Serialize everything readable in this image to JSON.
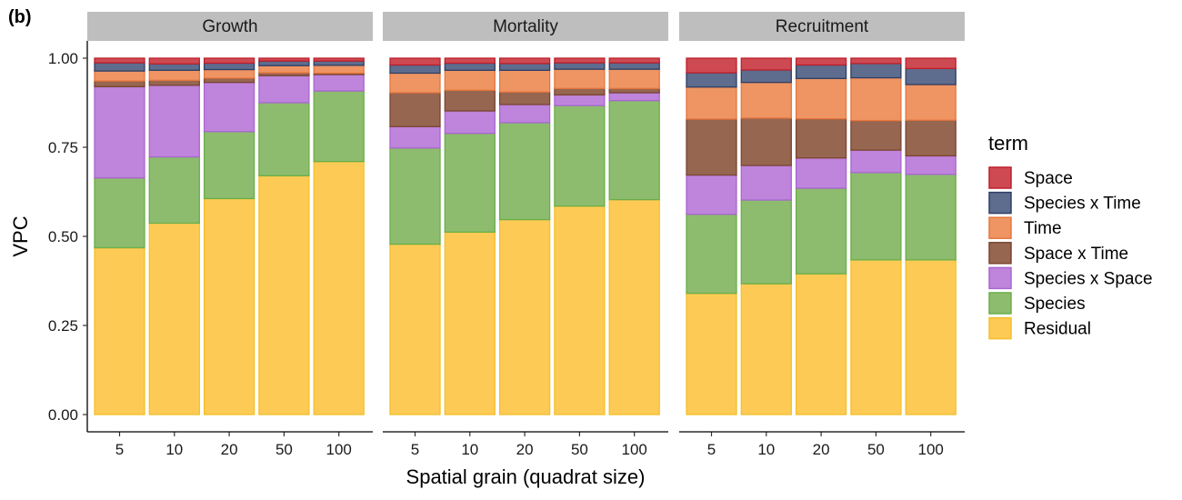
{
  "chart_data": {
    "type": "bar",
    "stacked": true,
    "tag": "(b)",
    "ylabel": "VPC",
    "xlabel": "Spatial grain (quadrat size)",
    "ylim": [
      0,
      1
    ],
    "yticks": [
      "0.00",
      "0.25",
      "0.50",
      "0.75",
      "1.00"
    ],
    "categories": [
      "5",
      "10",
      "20",
      "50",
      "100"
    ],
    "legend": {
      "title": "term",
      "placement": "right",
      "terms": [
        "Space",
        "Species x Time",
        "Time",
        "Space x Time",
        "Species x Space",
        "Species",
        "Residual"
      ]
    },
    "colors": {
      "Residual": {
        "fill": "#FDCB55",
        "stroke": "#F5BF2A"
      },
      "Species": {
        "fill": "#8DBC6F",
        "stroke": "#6AAE48"
      },
      "Species x Space": {
        "fill": "#BF84DC",
        "stroke": "#A967D0"
      },
      "Space x Time": {
        "fill": "#976650",
        "stroke": "#7A4530"
      },
      "Time": {
        "fill": "#EE9563",
        "stroke": "#E8763E"
      },
      "Species x Time": {
        "fill": "#5E6C8D",
        "stroke": "#2E3F66"
      },
      "Space": {
        "fill": "#CE4A52",
        "stroke": "#BF1F2C"
      }
    },
    "panels": [
      {
        "title": "Growth",
        "series": [
          {
            "name": "Residual",
            "values": [
              0.468,
              0.537,
              0.606,
              0.67,
              0.71
            ]
          },
          {
            "name": "Species",
            "values": [
              0.196,
              0.186,
              0.188,
              0.205,
              0.198
            ]
          },
          {
            "name": "Species x Space",
            "values": [
              0.256,
              0.201,
              0.138,
              0.076,
              0.046
            ]
          },
          {
            "name": "Space x Time",
            "values": [
              0.016,
              0.014,
              0.012,
              0.008,
              0.004
            ]
          },
          {
            "name": "Time",
            "values": [
              0.028,
              0.028,
              0.024,
              0.02,
              0.022
            ]
          },
          {
            "name": "Species x Time",
            "values": [
              0.023,
              0.018,
              0.018,
              0.013,
              0.012
            ]
          },
          {
            "name": "Space",
            "values": [
              0.013,
              0.016,
              0.014,
              0.008,
              0.008
            ]
          }
        ]
      },
      {
        "title": "Mortality",
        "series": [
          {
            "name": "Residual",
            "values": [
              0.478,
              0.512,
              0.547,
              0.585,
              0.603
            ]
          },
          {
            "name": "Species",
            "values": [
              0.27,
              0.277,
              0.272,
              0.282,
              0.278
            ]
          },
          {
            "name": "Species x Space",
            "values": [
              0.06,
              0.063,
              0.051,
              0.03,
              0.022
            ]
          },
          {
            "name": "Space x Time",
            "values": [
              0.095,
              0.058,
              0.035,
              0.018,
              0.012
            ]
          },
          {
            "name": "Time",
            "values": [
              0.055,
              0.056,
              0.061,
              0.054,
              0.054
            ]
          },
          {
            "name": "Species x Time",
            "values": [
              0.023,
              0.02,
              0.019,
              0.018,
              0.018
            ]
          },
          {
            "name": "Space",
            "values": [
              0.019,
              0.014,
              0.015,
              0.013,
              0.013
            ]
          }
        ]
      },
      {
        "title": "Recruitment",
        "series": [
          {
            "name": "Residual",
            "values": [
              0.34,
              0.367,
              0.395,
              0.434,
              0.434
            ]
          },
          {
            "name": "Species",
            "values": [
              0.222,
              0.235,
              0.24,
              0.245,
              0.24
            ]
          },
          {
            "name": "Species x Space",
            "values": [
              0.11,
              0.097,
              0.085,
              0.063,
              0.052
            ]
          },
          {
            "name": "Space x Time",
            "values": [
              0.157,
              0.133,
              0.11,
              0.083,
              0.1
            ]
          },
          {
            "name": "Time",
            "values": [
              0.09,
              0.1,
              0.113,
              0.12,
              0.1
            ]
          },
          {
            "name": "Species x Time",
            "values": [
              0.04,
              0.035,
              0.038,
              0.04,
              0.045
            ]
          },
          {
            "name": "Space",
            "values": [
              0.041,
              0.033,
              0.019,
              0.015,
              0.029
            ]
          }
        ]
      }
    ]
  }
}
